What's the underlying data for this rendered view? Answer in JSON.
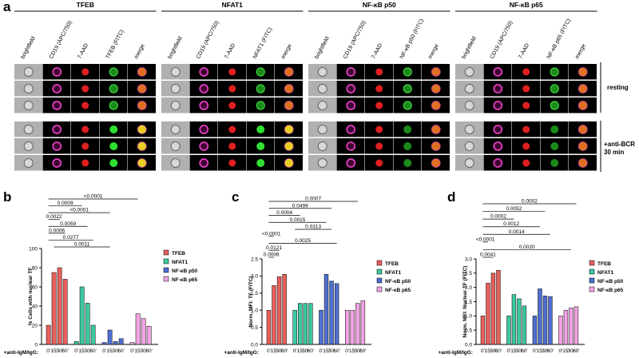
{
  "panel_labels": [
    "a",
    "b",
    "c",
    "d"
  ],
  "panel_a": {
    "groups": [
      {
        "title": "TFEB",
        "columns": [
          "brightfield",
          "CD19 (APC/750)",
          "7-AAD",
          "TFEB (FITC)",
          "merge"
        ]
      },
      {
        "title": "NFAT1",
        "columns": [
          "brightfield",
          "CD19 (APC/750)",
          "7-AAD",
          "NFAT1 (FITC)",
          "merge"
        ]
      },
      {
        "title": "NF-κB p50",
        "columns": [
          "brightfield",
          "CD19 (APC/750)",
          "7-AAD",
          "NF-κB p50 (FITC)",
          "merge"
        ]
      },
      {
        "title": "NF-κB p65",
        "columns": [
          "brightfield",
          "CD19 (APC/750)",
          "7-AAD",
          "NF-κB p65 (FITC)",
          "merge"
        ]
      }
    ],
    "conditions": [
      "resting",
      "+anti-BCR 30 min"
    ]
  },
  "chart_data": [
    {
      "type": "bar",
      "y_label": "% Cells with nuclear TF",
      "x_label": "+anti-IgM/IgG:",
      "categories": [
        "0'",
        "15'",
        "30'",
        "60'"
      ],
      "series": [
        {
          "name": "TFEB",
          "color": "#e8605c",
          "values": [
            20,
            75,
            80,
            68
          ]
        },
        {
          "name": "NFAT1",
          "color": "#3cc8a0",
          "values": [
            3,
            60,
            43,
            20
          ]
        },
        {
          "name": "NF-κB p50",
          "color": "#4f6fd0",
          "values": [
            2,
            15,
            3,
            6
          ]
        },
        {
          "name": "NF-κB p65",
          "color": "#f2a3e3",
          "values": [
            2,
            32,
            27,
            19
          ]
        }
      ],
      "ylim": [
        0,
        100
      ],
      "yticks": [
        0,
        20,
        40,
        60,
        80,
        100
      ],
      "comparisons": [
        "<0.0001",
        "0.0009",
        "<0.0001",
        "0.0022",
        "0.0059",
        "0.0006",
        "0.0277",
        "0.0011"
      ]
    },
    {
      "type": "bar",
      "y_label": "Norm. MFI: TF (FITC)",
      "x_label": "+anti-IgM/IgG:",
      "categories": [
        "0'",
        "15'",
        "30'",
        "60'"
      ],
      "series": [
        {
          "name": "TFEB",
          "color": "#e8605c",
          "values": [
            1.0,
            1.72,
            1.98,
            2.05
          ]
        },
        {
          "name": "NFAT1",
          "color": "#3cc8a0",
          "values": [
            1.0,
            1.2,
            1.2,
            1.2
          ]
        },
        {
          "name": "NF-κB p50",
          "color": "#4f6fd0",
          "values": [
            1.0,
            2.05,
            1.85,
            1.78
          ]
        },
        {
          "name": "NF-κB p65",
          "color": "#f2a3e3",
          "values": [
            1.0,
            1.0,
            1.2,
            1.28
          ]
        }
      ],
      "ylim": [
        0,
        2.5
      ],
      "yticks": [
        {
          "value": 0,
          "label": "0.0"
        },
        {
          "value": 0.5,
          "label": "0.5"
        },
        {
          "value": 1,
          "label": "1.0"
        },
        {
          "value": 1.5,
          "label": "1.5"
        },
        {
          "value": 2,
          "label": "2.0"
        },
        {
          "value": 2.5,
          "label": "2.5"
        }
      ],
      "comparisons": [
        "0.0007",
        "0.0499",
        "0.0004",
        "0.0015",
        "0.0313",
        "<0.0001",
        "0.0025",
        "0.0121",
        "0.0006"
      ]
    },
    {
      "type": "bar",
      "y_label": "Norm. MFI: Nuclear TF (FITC)",
      "x_label": "+anti-IgM/IgG:",
      "categories": [
        "0'",
        "15'",
        "30'",
        "60'"
      ],
      "series": [
        {
          "name": "TFEB",
          "color": "#e8605c",
          "values": [
            1.0,
            2.15,
            2.5,
            2.6
          ]
        },
        {
          "name": "NFAT1",
          "color": "#3cc8a0",
          "values": [
            1.0,
            1.75,
            1.6,
            1.35
          ]
        },
        {
          "name": "NF-κB p50",
          "color": "#4f6fd0",
          "values": [
            1.0,
            1.95,
            1.7,
            1.68
          ]
        },
        {
          "name": "NF-κB p65",
          "color": "#f2a3e3",
          "values": [
            1.0,
            1.2,
            1.28,
            1.32
          ]
        }
      ],
      "ylim": [
        0,
        3
      ],
      "yticks": [
        {
          "value": 0,
          "label": "0.0"
        },
        {
          "value": 0.5,
          "label": "0.5"
        },
        {
          "value": 1,
          "label": "1.0"
        },
        {
          "value": 1.5,
          "label": "1.5"
        },
        {
          "value": 2,
          "label": "2.0"
        },
        {
          "value": 2.5,
          "label": "2.5"
        },
        {
          "value": 3,
          "label": "3.0"
        }
      ],
      "comparisons": [
        "0.0002",
        "0.0052",
        "0.0002",
        "0.0012",
        "0.0014",
        "<0.0001",
        "0.0020",
        "0.0041"
      ]
    }
  ]
}
